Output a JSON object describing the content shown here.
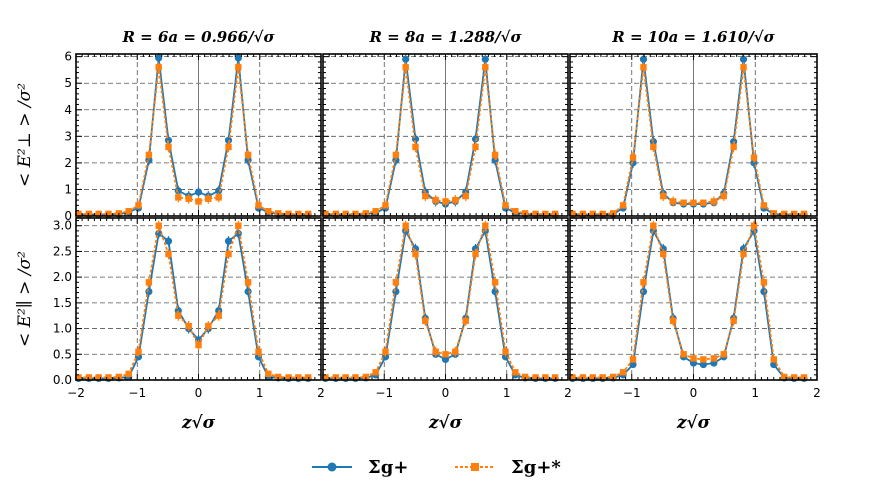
{
  "chart_data": [
    {
      "type": "line",
      "title": "R = 6a = 0.966/√σ",
      "ylabel": "< E²⊥ > /σ²",
      "xlabel": "",
      "xlim": [
        -2,
        2
      ],
      "ylim": [
        0,
        6.1
      ],
      "xticks": [
        "−2",
        "−1",
        "0",
        "1",
        ""
      ],
      "yticks": [
        "0",
        "1",
        "2",
        "3",
        "4",
        "5",
        "6"
      ],
      "grid": true,
      "x": [
        -1.96,
        -1.79,
        -1.63,
        -1.47,
        -1.3,
        -1.14,
        -0.98,
        -0.81,
        -0.65,
        -0.49,
        -0.33,
        -0.16,
        0,
        0.16,
        0.33,
        0.49,
        0.65,
        0.81,
        0.98,
        1.14,
        1.3,
        1.47,
        1.63,
        1.79
      ],
      "series": [
        {
          "name": "Σg+",
          "color": "#1f77b4",
          "style": "solid",
          "values": [
            0.05,
            0.05,
            0.05,
            0.05,
            0.07,
            0.15,
            0.3,
            2.1,
            5.95,
            2.85,
            0.95,
            0.75,
            0.9,
            0.75,
            0.95,
            2.85,
            5.95,
            2.1,
            0.3,
            0.15,
            0.07,
            0.05,
            0.05,
            0.05
          ]
        },
        {
          "name": "Σg+*",
          "color": "#ff7f0e",
          "style": "dotted",
          "values": [
            0.08,
            0.08,
            0.08,
            0.08,
            0.1,
            0.18,
            0.4,
            2.3,
            5.6,
            2.6,
            0.7,
            0.65,
            0.55,
            0.65,
            0.7,
            2.6,
            5.6,
            2.3,
            0.4,
            0.18,
            0.1,
            0.08,
            0.08,
            0.08
          ]
        }
      ]
    },
    {
      "type": "line",
      "title": "R = 8a = 1.288/√σ",
      "ylabel": "",
      "xlabel": "",
      "xlim": [
        -2,
        2
      ],
      "ylim": [
        0,
        6.1
      ],
      "xticks": [
        "2",
        "−1",
        "0",
        "1",
        ""
      ],
      "yticks": [],
      "grid": true,
      "x": [
        -1.96,
        -1.79,
        -1.63,
        -1.47,
        -1.3,
        -1.14,
        -0.98,
        -0.81,
        -0.65,
        -0.49,
        -0.33,
        -0.16,
        0,
        0.16,
        0.33,
        0.49,
        0.65,
        0.81,
        0.98,
        1.14,
        1.3,
        1.47,
        1.63,
        1.79
      ],
      "series": [
        {
          "name": "Σg+",
          "color": "#1f77b4",
          "style": "solid",
          "values": [
            0.05,
            0.05,
            0.05,
            0.05,
            0.07,
            0.12,
            0.3,
            2.1,
            5.9,
            2.9,
            0.9,
            0.55,
            0.45,
            0.55,
            0.9,
            2.9,
            5.9,
            2.1,
            0.3,
            0.12,
            0.07,
            0.05,
            0.05,
            0.05
          ]
        },
        {
          "name": "Σg+*",
          "color": "#ff7f0e",
          "style": "dotted",
          "values": [
            0.08,
            0.08,
            0.08,
            0.08,
            0.1,
            0.18,
            0.4,
            2.3,
            5.6,
            2.6,
            0.75,
            0.6,
            0.55,
            0.6,
            0.75,
            2.6,
            5.6,
            2.3,
            0.4,
            0.18,
            0.1,
            0.08,
            0.08,
            0.08
          ]
        }
      ]
    },
    {
      "type": "line",
      "title": "R = 10a = 1.610/√σ",
      "ylabel": "",
      "xlabel": "",
      "xlim": [
        -2,
        2
      ],
      "ylim": [
        0,
        6.1
      ],
      "xticks": [
        "2",
        "−1",
        "0",
        "1",
        "2"
      ],
      "yticks": [],
      "grid": true,
      "x": [
        -1.96,
        -1.79,
        -1.63,
        -1.47,
        -1.3,
        -1.14,
        -0.98,
        -0.81,
        -0.65,
        -0.49,
        -0.33,
        -0.16,
        0,
        0.16,
        0.33,
        0.49,
        0.65,
        0.81,
        0.98,
        1.14,
        1.3,
        1.47,
        1.63,
        1.79
      ],
      "series": [
        {
          "name": "Σg+",
          "color": "#1f77b4",
          "style": "solid",
          "values": [
            0.05,
            0.05,
            0.05,
            0.05,
            0.07,
            0.3,
            2.0,
            5.9,
            2.8,
            0.85,
            0.5,
            0.45,
            0.45,
            0.45,
            0.5,
            0.85,
            2.8,
            5.9,
            2.0,
            0.3,
            0.07,
            0.05,
            0.05,
            0.05
          ]
        },
        {
          "name": "Σg+*",
          "color": "#ff7f0e",
          "style": "dotted",
          "values": [
            0.08,
            0.08,
            0.08,
            0.08,
            0.1,
            0.4,
            2.2,
            5.6,
            2.6,
            0.75,
            0.55,
            0.5,
            0.5,
            0.5,
            0.55,
            0.75,
            2.6,
            5.6,
            2.2,
            0.4,
            0.1,
            0.08,
            0.08,
            0.08
          ]
        }
      ]
    },
    {
      "type": "line",
      "title": "",
      "ylabel": "< E²∥ > /σ²",
      "xlabel": "z√σ",
      "xlim": [
        -2,
        2
      ],
      "ylim": [
        0,
        3.15
      ],
      "xticks": [
        "−2",
        "−1",
        "0",
        "1",
        ""
      ],
      "yticks": [
        "0.0",
        "0.5",
        "1.0",
        "1.5",
        "2.0",
        "2.5",
        "3.0"
      ],
      "grid": true,
      "x": [
        -1.96,
        -1.79,
        -1.63,
        -1.47,
        -1.3,
        -1.14,
        -0.98,
        -0.81,
        -0.65,
        -0.49,
        -0.33,
        -0.16,
        0,
        0.16,
        0.33,
        0.49,
        0.65,
        0.81,
        0.98,
        1.14,
        1.3,
        1.47,
        1.63,
        1.79
      ],
      "series": [
        {
          "name": "Σg+",
          "color": "#1f77b4",
          "style": "solid",
          "values": [
            0.03,
            0.03,
            0.03,
            0.03,
            0.04,
            0.06,
            0.45,
            1.72,
            2.85,
            2.7,
            1.35,
            1.0,
            0.78,
            1.0,
            1.35,
            2.7,
            2.85,
            1.72,
            0.45,
            0.06,
            0.04,
            0.03,
            0.03,
            0.03
          ]
        },
        {
          "name": "Σg+*",
          "color": "#ff7f0e",
          "style": "dotted",
          "values": [
            0.05,
            0.05,
            0.05,
            0.05,
            0.06,
            0.12,
            0.55,
            1.9,
            3.0,
            2.45,
            1.25,
            1.05,
            0.68,
            1.05,
            1.25,
            2.45,
            3.0,
            1.9,
            0.55,
            0.12,
            0.06,
            0.05,
            0.05,
            0.05
          ]
        }
      ]
    },
    {
      "type": "line",
      "title": "",
      "ylabel": "",
      "xlabel": "z√σ",
      "xlim": [
        -2,
        2
      ],
      "ylim": [
        0,
        3.15
      ],
      "xticks": [
        "2",
        "−1",
        "0",
        "1",
        ""
      ],
      "yticks": [],
      "grid": true,
      "x": [
        -1.96,
        -1.79,
        -1.63,
        -1.47,
        -1.3,
        -1.14,
        -0.98,
        -0.81,
        -0.65,
        -0.49,
        -0.33,
        -0.16,
        0,
        0.16,
        0.33,
        0.49,
        0.65,
        0.81,
        0.98,
        1.14,
        1.3,
        1.47,
        1.63,
        1.79
      ],
      "series": [
        {
          "name": "Σg+",
          "color": "#1f77b4",
          "style": "solid",
          "values": [
            0.03,
            0.03,
            0.03,
            0.03,
            0.04,
            0.1,
            0.45,
            1.72,
            2.9,
            2.55,
            1.2,
            0.5,
            0.4,
            0.5,
            1.2,
            2.55,
            2.9,
            1.72,
            0.45,
            0.1,
            0.04,
            0.03,
            0.03,
            0.03
          ]
        },
        {
          "name": "Σg+*",
          "color": "#ff7f0e",
          "style": "dotted",
          "values": [
            0.05,
            0.05,
            0.05,
            0.05,
            0.06,
            0.15,
            0.55,
            1.9,
            3.0,
            2.45,
            1.15,
            0.55,
            0.5,
            0.55,
            1.15,
            2.45,
            3.0,
            1.9,
            0.55,
            0.15,
            0.06,
            0.05,
            0.05,
            0.05
          ]
        }
      ]
    },
    {
      "type": "line",
      "title": "",
      "ylabel": "",
      "xlabel": "z√σ",
      "xlim": [
        -2,
        2
      ],
      "ylim": [
        0,
        3.15
      ],
      "xticks": [
        "2",
        "−1",
        "0",
        "1",
        "2"
      ],
      "yticks": [],
      "grid": true,
      "x": [
        -1.96,
        -1.79,
        -1.63,
        -1.47,
        -1.3,
        -1.14,
        -0.98,
        -0.81,
        -0.65,
        -0.49,
        -0.33,
        -0.16,
        0,
        0.16,
        0.33,
        0.49,
        0.65,
        0.81,
        0.98,
        1.14,
        1.3,
        1.47,
        1.63,
        1.79
      ],
      "series": [
        {
          "name": "Σg+",
          "color": "#1f77b4",
          "style": "solid",
          "values": [
            0.03,
            0.03,
            0.03,
            0.03,
            0.04,
            0.1,
            0.3,
            1.72,
            2.9,
            2.55,
            1.2,
            0.45,
            0.33,
            0.3,
            0.33,
            0.45,
            1.2,
            2.55,
            2.9,
            1.72,
            0.3,
            0.04,
            0.03,
            0.03
          ]
        },
        {
          "name": "Σg+*",
          "color": "#ff7f0e",
          "style": "dotted",
          "values": [
            0.05,
            0.05,
            0.05,
            0.05,
            0.06,
            0.15,
            0.4,
            1.9,
            3.0,
            2.45,
            1.15,
            0.5,
            0.42,
            0.4,
            0.42,
            0.5,
            1.15,
            2.45,
            3.0,
            1.9,
            0.4,
            0.06,
            0.05,
            0.05
          ]
        }
      ]
    }
  ],
  "legend": {
    "items": [
      {
        "label": "Σg+",
        "color": "#1f77b4"
      },
      {
        "label": "Σg+*",
        "color": "#ff7f0e"
      }
    ],
    "placement": "bottom-center"
  }
}
